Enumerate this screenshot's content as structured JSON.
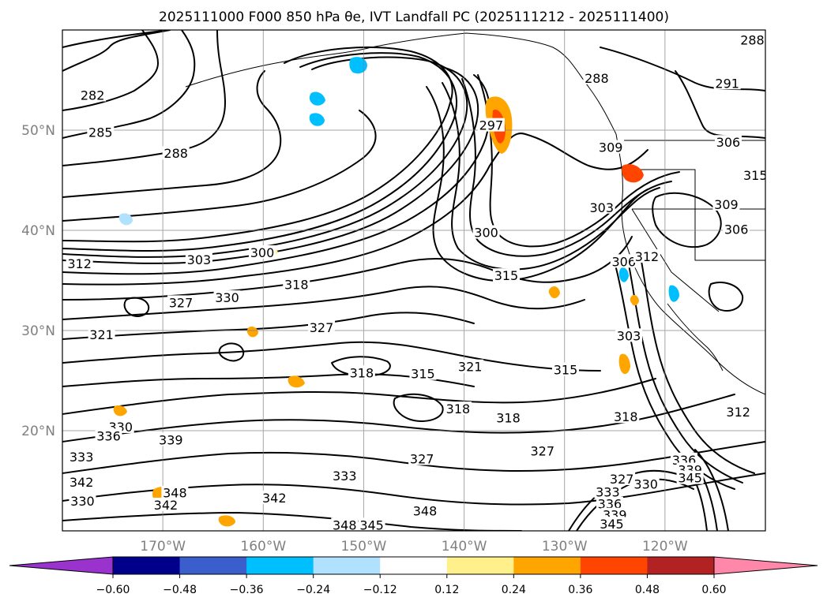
{
  "chart_data": {
    "type": "contour-map",
    "title": "2025111000 F000 850 hPa θe, IVT Landfall PC (2025111212 - 2025111400)",
    "x_ticks": [
      {
        "value": -170,
        "label": "170°W"
      },
      {
        "value": -160,
        "label": "160°W"
      },
      {
        "value": -150,
        "label": "150°W"
      },
      {
        "value": -140,
        "label": "140°W"
      },
      {
        "value": -130,
        "label": "130°W"
      },
      {
        "value": -120,
        "label": "120°W"
      }
    ],
    "y_ticks": [
      {
        "value": 50,
        "label": "50°N"
      },
      {
        "value": 40,
        "label": "40°N"
      },
      {
        "value": 30,
        "label": "30°N"
      },
      {
        "value": 20,
        "label": "20°N"
      }
    ],
    "xlim": [
      -180,
      -110
    ],
    "ylim": [
      10,
      60
    ],
    "grid": true,
    "colorbar": {
      "orientation": "horizontal",
      "extend": "both",
      "boundaries": [
        -0.72,
        -0.6,
        -0.48,
        -0.36,
        -0.24,
        -0.12,
        0.12,
        0.24,
        0.36,
        0.48,
        0.6,
        0.72
      ],
      "colors": [
        "#9a32cd",
        "#00008b",
        "#3a5fcd",
        "#00bfff",
        "#b0e2ff",
        "#ffffff",
        "#fff08c",
        "#ffa500",
        "#ff4500",
        "#b22222",
        "#ff88aa"
      ],
      "extend_colors": {
        "low": "#9a32cd",
        "high": "#ff88aa"
      },
      "tick_labels": [
        "−0.60",
        "−0.48",
        "−0.36",
        "−0.24",
        "−0.12",
        "0.12",
        "0.24",
        "0.36",
        "0.48",
        "0.60"
      ],
      "tick_values": [
        -0.6,
        -0.48,
        -0.36,
        -0.24,
        -0.12,
        0.12,
        0.24,
        0.36,
        0.48,
        0.6
      ]
    },
    "contour_labels": [
      {
        "text": "282",
        "lon": -177,
        "lat": 53.5
      },
      {
        "text": "285",
        "lon": -176.2,
        "lat": 49.8
      },
      {
        "text": "288",
        "lon": -168.7,
        "lat": 47.7
      },
      {
        "text": "288",
        "lon": -111.3,
        "lat": 59
      },
      {
        "text": "288",
        "lon": -126.8,
        "lat": 55.2
      },
      {
        "text": "291",
        "lon": -113.8,
        "lat": 54.7
      },
      {
        "text": "297",
        "lon": -137.3,
        "lat": 50.5
      },
      {
        "text": "300",
        "lon": -160.1,
        "lat": 37.8
      },
      {
        "text": "300",
        "lon": -137.8,
        "lat": 39.8
      },
      {
        "text": "303",
        "lon": -166.4,
        "lat": 37.1
      },
      {
        "text": "303",
        "lon": -126.3,
        "lat": 42.3
      },
      {
        "text": "303",
        "lon": -123.6,
        "lat": 29.5
      },
      {
        "text": "306",
        "lon": -124.1,
        "lat": 36.9
      },
      {
        "text": "306",
        "lon": -113.7,
        "lat": 48.8
      },
      {
        "text": "306",
        "lon": -112.9,
        "lat": 40.1
      },
      {
        "text": "309",
        "lon": -125.4,
        "lat": 48.3
      },
      {
        "text": "309",
        "lon": -113.9,
        "lat": 42.6
      },
      {
        "text": "312",
        "lon": -178.3,
        "lat": 36.7
      },
      {
        "text": "312",
        "lon": -121.8,
        "lat": 37.4
      },
      {
        "text": "312",
        "lon": -112.7,
        "lat": 21.9
      },
      {
        "text": "315",
        "lon": -135.8,
        "lat": 35.5
      },
      {
        "text": "315",
        "lon": -129.9,
        "lat": 26.1
      },
      {
        "text": "315",
        "lon": -144.1,
        "lat": 25.7
      },
      {
        "text": "315",
        "lon": -111,
        "lat": 45.5
      },
      {
        "text": "318",
        "lon": -156.7,
        "lat": 34.6
      },
      {
        "text": "318",
        "lon": -150.2,
        "lat": 25.8
      },
      {
        "text": "318",
        "lon": -123.9,
        "lat": 21.4
      },
      {
        "text": "318",
        "lon": -140.6,
        "lat": 22.2
      },
      {
        "text": "318",
        "lon": -135.6,
        "lat": 21.3
      },
      {
        "text": "321",
        "lon": -176.1,
        "lat": 29.6
      },
      {
        "text": "321",
        "lon": -139.4,
        "lat": 26.4
      },
      {
        "text": "327",
        "lon": -168.2,
        "lat": 32.8
      },
      {
        "text": "327",
        "lon": -154.2,
        "lat": 30.3
      },
      {
        "text": "327",
        "lon": -144.2,
        "lat": 17.2
      },
      {
        "text": "327",
        "lon": -132.2,
        "lat": 18
      },
      {
        "text": "327",
        "lon": -124.3,
        "lat": 15.2
      },
      {
        "text": "330",
        "lon": -163.6,
        "lat": 33.3
      },
      {
        "text": "330",
        "lon": -174.2,
        "lat": 20.4
      },
      {
        "text": "330",
        "lon": -178,
        "lat": 13
      },
      {
        "text": "330",
        "lon": -121.9,
        "lat": 14.7
      },
      {
        "text": "333",
        "lon": -178.1,
        "lat": 17.4
      },
      {
        "text": "333",
        "lon": -151.9,
        "lat": 15.5
      },
      {
        "text": "333",
        "lon": -125.7,
        "lat": 13.9
      },
      {
        "text": "336",
        "lon": -175.4,
        "lat": 19.5
      },
      {
        "text": "336",
        "lon": -125.5,
        "lat": 12.7
      },
      {
        "text": "336",
        "lon": -118.1,
        "lat": 17.1
      },
      {
        "text": "339",
        "lon": -169.2,
        "lat": 19.1
      },
      {
        "text": "339",
        "lon": -125,
        "lat": 11.6
      },
      {
        "text": "339",
        "lon": -117.5,
        "lat": 16.1
      },
      {
        "text": "342",
        "lon": -178.1,
        "lat": 14.9
      },
      {
        "text": "342",
        "lon": -169.7,
        "lat": 12.6
      },
      {
        "text": "342",
        "lon": -158.9,
        "lat": 13.3
      },
      {
        "text": "345",
        "lon": -149.2,
        "lat": 10.6
      },
      {
        "text": "345",
        "lon": -125.3,
        "lat": 10.7
      },
      {
        "text": "345",
        "lon": -117.5,
        "lat": 15.3
      },
      {
        "text": "348",
        "lon": -151.9,
        "lat": 10.6
      },
      {
        "text": "348",
        "lon": -143.9,
        "lat": 12
      },
      {
        "text": "348",
        "lon": -168.8,
        "lat": 13.8
      }
    ]
  }
}
